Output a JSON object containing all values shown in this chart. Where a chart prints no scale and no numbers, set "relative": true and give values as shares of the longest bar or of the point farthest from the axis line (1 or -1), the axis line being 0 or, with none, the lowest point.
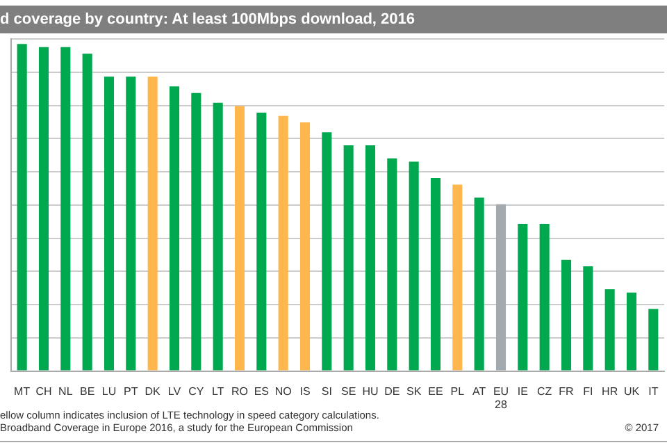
{
  "chart_data": {
    "type": "bar",
    "title": "d coverage by country: At least 100Mbps download, 2016",
    "categories": [
      "MT",
      "CH",
      "NL",
      "BE",
      "LU",
      "PT",
      "DK",
      "LV",
      "CY",
      "LT",
      "RO",
      "ES",
      "NO",
      "IS",
      "SI",
      "SE",
      "HU",
      "DE",
      "SK",
      "EE",
      "PL",
      "AT",
      "EU 28",
      "IE",
      "CZ",
      "FR",
      "FI",
      "HR",
      "UK",
      "IT"
    ],
    "values": [
      1,
      0.99,
      0.99,
      0.97,
      0.9,
      0.9,
      0.9,
      0.87,
      0.85,
      0.82,
      0.81,
      0.79,
      0.78,
      0.76,
      0.73,
      0.69,
      0.69,
      0.65,
      0.64,
      0.59,
      0.57,
      0.53,
      0.51,
      0.45,
      0.45,
      0.34,
      0.32,
      0.25,
      0.24,
      0.19
    ],
    "colors": [
      "#00a94f",
      "#00a94f",
      "#00a94f",
      "#00a94f",
      "#00a94f",
      "#00a94f",
      "#ffb74d",
      "#00a94f",
      "#00a94f",
      "#00a94f",
      "#ffb74d",
      "#00a94f",
      "#ffb74d",
      "#ffb74d",
      "#00a94f",
      "#00a94f",
      "#00a94f",
      "#00a94f",
      "#00a94f",
      "#00a94f",
      "#ffb74d",
      "#00a94f",
      "#a2aab0",
      "#00a94f",
      "#00a94f",
      "#00a94f",
      "#00a94f",
      "#00a94f",
      "#00a94f",
      "#00a94f"
    ],
    "relative": true,
    "grid": "y",
    "legend": false,
    "annotations": [
      "ellow column indicates inclusion of LTE technology in speed category calculations.",
      "Broadband Coverage in Europe 2016, a study for the European Commission",
      "© 2017"
    ]
  }
}
